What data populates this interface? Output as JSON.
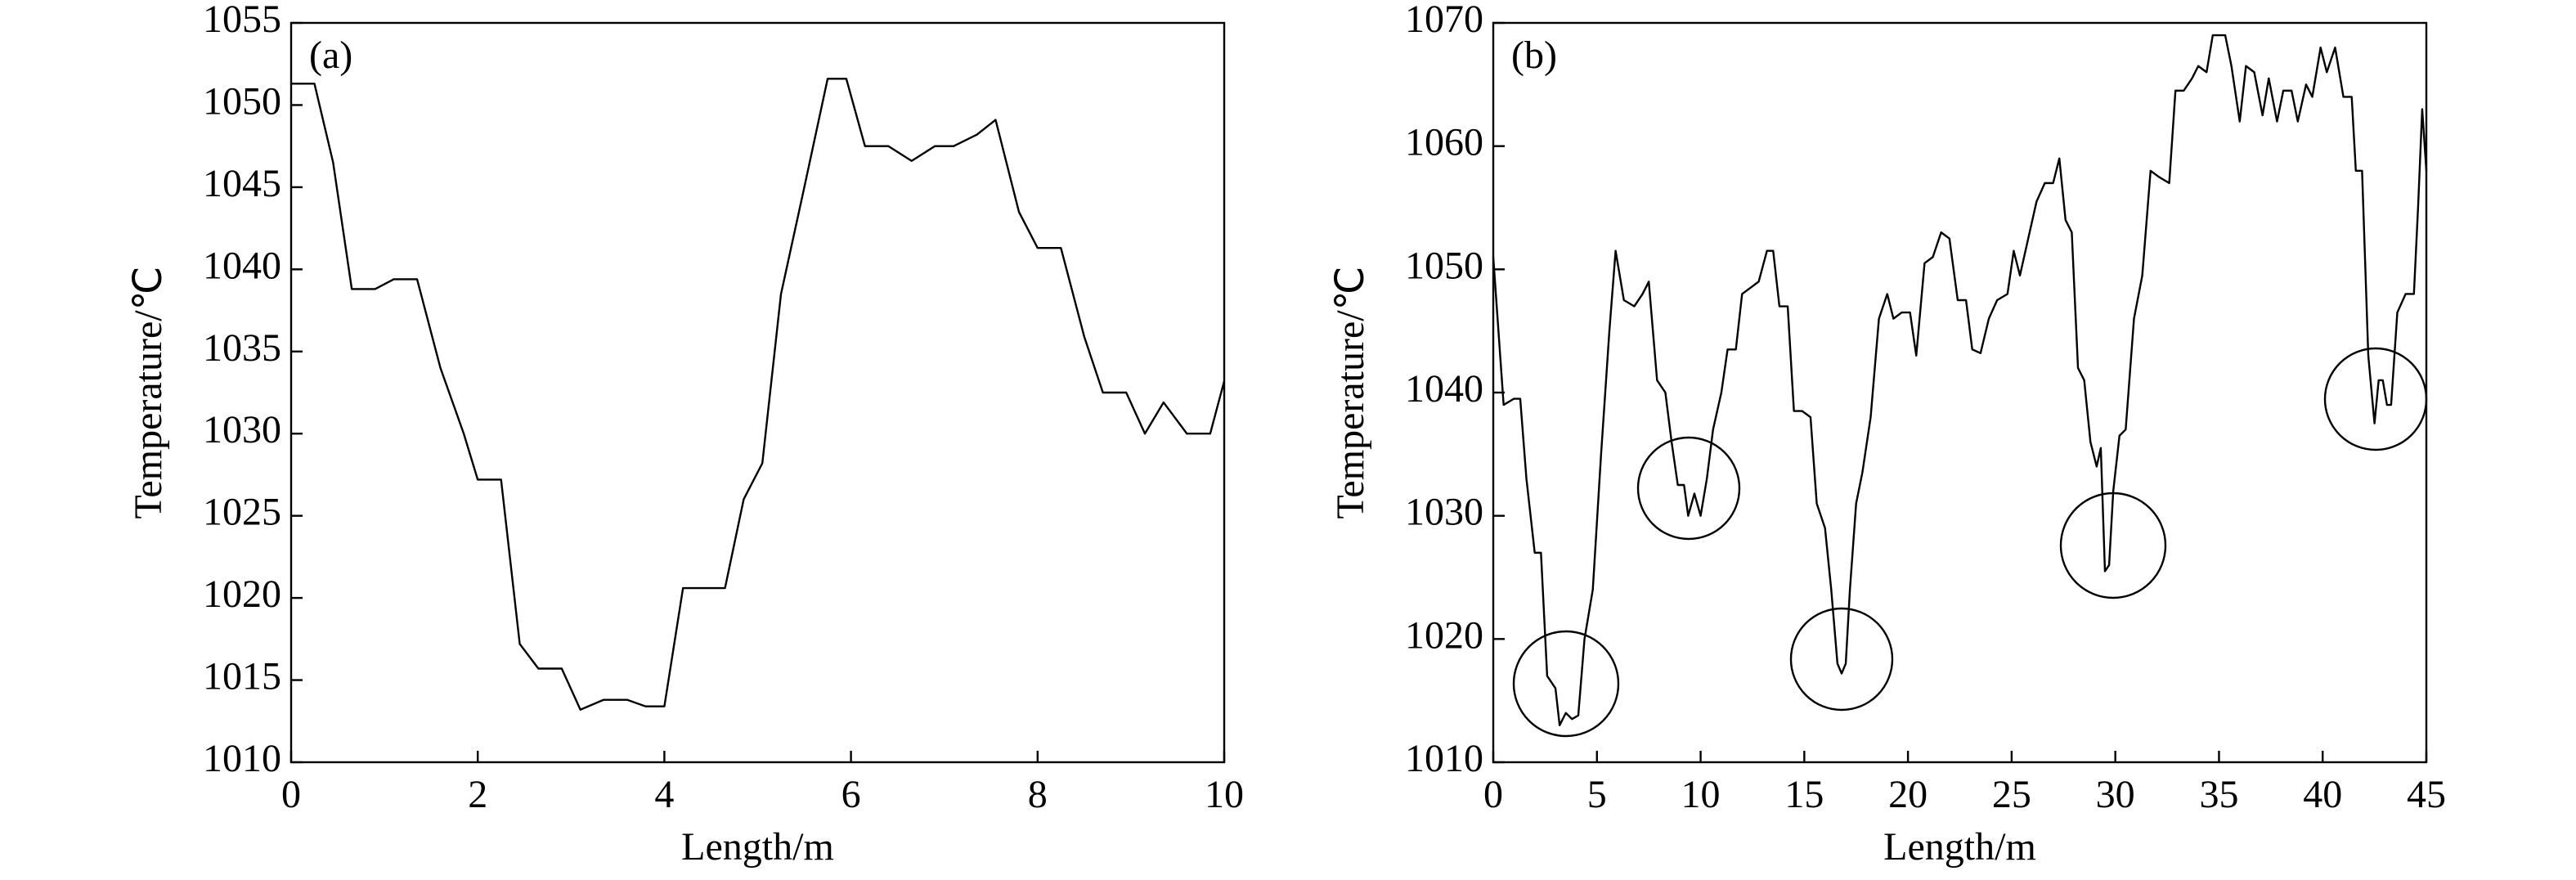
{
  "chart_data": [
    {
      "type": "line",
      "label": "(a)",
      "x_label": "Length/m",
      "y_label": "Temperature/℃",
      "xlim": [
        0,
        10
      ],
      "xticks": [
        0,
        2,
        4,
        6,
        8,
        10
      ],
      "ylim": [
        1010,
        1055
      ],
      "yticks": [
        1010,
        1015,
        1020,
        1025,
        1030,
        1035,
        1040,
        1045,
        1050,
        1055
      ],
      "color": "#000000",
      "x": [
        0,
        0.25,
        0.45,
        0.65,
        0.9,
        1.1,
        1.35,
        1.6,
        1.85,
        2.0,
        2.25,
        2.45,
        2.65,
        2.9,
        3.1,
        3.35,
        3.6,
        3.8,
        4.0,
        4.2,
        4.65,
        4.85,
        5.05,
        5.25,
        5.5,
        5.75,
        5.95,
        6.15,
        6.4,
        6.65,
        6.9,
        7.1,
        7.35,
        7.55,
        7.8,
        8.0,
        8.25,
        8.5,
        8.7,
        8.95,
        9.15,
        9.35,
        9.6,
        9.85,
        10
      ],
      "values": [
        1051.3,
        1051.3,
        1046.5,
        1038.8,
        1038.8,
        1039.4,
        1039.4,
        1034,
        1030,
        1027.2,
        1027.2,
        1017.2,
        1015.7,
        1015.7,
        1013.2,
        1013.8,
        1013.8,
        1013.4,
        1013.4,
        1020.6,
        1020.6,
        1026,
        1028.2,
        1038.5,
        1045,
        1051.6,
        1051.6,
        1047.5,
        1047.5,
        1046.6,
        1047.5,
        1047.5,
        1048.2,
        1049.1,
        1043.5,
        1041.3,
        1041.3,
        1035.9,
        1032.5,
        1032.5,
        1030,
        1031.9,
        1030,
        1030,
        1033.2
      ]
    },
    {
      "type": "line",
      "label": "(b)",
      "x_label": "Length/m",
      "y_label": "Temperature/℃",
      "xlim": [
        0,
        45
      ],
      "xticks": [
        0,
        5,
        10,
        15,
        20,
        25,
        30,
        35,
        40,
        45
      ],
      "ylim": [
        1010,
        1070
      ],
      "yticks": [
        1010,
        1020,
        1030,
        1040,
        1050,
        1060,
        1070
      ],
      "color": "#000000",
      "x": [
        0,
        0.5,
        1,
        1.3,
        1.6,
        2,
        2.3,
        2.6,
        3,
        3.2,
        3.5,
        3.8,
        4.1,
        4.4,
        4.8,
        5.2,
        5.6,
        5.9,
        6.3,
        6.8,
        7.2,
        7.5,
        7.9,
        8.3,
        8.6,
        8.9,
        9.2,
        9.4,
        9.7,
        10,
        10.3,
        10.6,
        11,
        11.3,
        11.7,
        12,
        12.4,
        12.8,
        13.2,
        13.5,
        13.8,
        14.2,
        14.5,
        14.9,
        15.3,
        15.6,
        16,
        16.3,
        16.6,
        16.8,
        17,
        17.2,
        17.5,
        17.8,
        18.2,
        18.6,
        19,
        19.3,
        19.7,
        20.1,
        20.4,
        20.8,
        21.2,
        21.6,
        22,
        22.4,
        22.8,
        23.1,
        23.5,
        23.9,
        24.3,
        24.8,
        25.1,
        25.4,
        25.8,
        26.2,
        26.6,
        27,
        27.3,
        27.6,
        27.9,
        28.2,
        28.5,
        28.8,
        29.1,
        29.3,
        29.5,
        29.7,
        29.9,
        30.2,
        30.5,
        30.9,
        31.3,
        31.7,
        32.1,
        32.6,
        32.9,
        33.3,
        33.7,
        34,
        34.4,
        34.7,
        35.3,
        35.6,
        36,
        36.3,
        36.7,
        37.1,
        37.4,
        37.8,
        38.1,
        38.5,
        38.8,
        39.2,
        39.5,
        39.9,
        40.2,
        40.6,
        41,
        41.4,
        41.6,
        41.9,
        42.2,
        42.5,
        42.7,
        42.9,
        43.1,
        43.3,
        43.6,
        44,
        44.4,
        44.6,
        44.8,
        45
      ],
      "values": [
        1051,
        1039,
        1039.5,
        1039.5,
        1033,
        1027,
        1027,
        1017,
        1016,
        1013,
        1014,
        1013.5,
        1013.8,
        1020,
        1024,
        1035,
        1045,
        1051.5,
        1047.5,
        1047,
        1048,
        1049,
        1041,
        1040,
        1036,
        1032.5,
        1032.5,
        1030,
        1031.8,
        1030,
        1033,
        1037,
        1040,
        1043.5,
        1043.5,
        1048,
        1048.5,
        1049,
        1051.5,
        1051.5,
        1047,
        1047,
        1038.5,
        1038.5,
        1038,
        1031,
        1029,
        1024,
        1018,
        1017.2,
        1018,
        1024,
        1031,
        1033.5,
        1038,
        1046,
        1048,
        1046,
        1046.5,
        1046.5,
        1043,
        1050.5,
        1051,
        1053,
        1052.5,
        1047.5,
        1047.5,
        1043.5,
        1043.2,
        1046,
        1047.5,
        1048,
        1051.5,
        1049.5,
        1052.5,
        1055.5,
        1057,
        1057,
        1059,
        1054,
        1053,
        1042,
        1041,
        1036,
        1034,
        1035.5,
        1025.5,
        1026,
        1032,
        1036.5,
        1037,
        1046,
        1049.5,
        1058,
        1057.5,
        1057,
        1064.5,
        1064.5,
        1065.5,
        1066.5,
        1066,
        1069,
        1069,
        1066.5,
        1062,
        1066.5,
        1066,
        1062.5,
        1065.5,
        1062,
        1064.5,
        1064.5,
        1062,
        1065,
        1064,
        1068,
        1066,
        1068,
        1064,
        1064,
        1058,
        1058,
        1043,
        1037.5,
        1041,
        1041,
        1039,
        1039,
        1046.5,
        1048,
        1048,
        1055,
        1063,
        1058
      ]
    }
  ]
}
